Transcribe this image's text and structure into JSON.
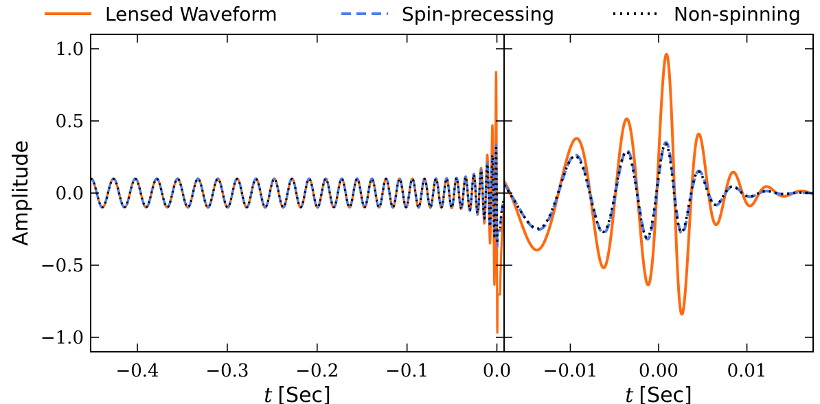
{
  "colors": {
    "lensed": "#ff6a10",
    "spin": "#4f7df0",
    "nonspin": "#000000"
  },
  "legend": [
    {
      "label": "Lensed Waveform",
      "style": "solid",
      "color_key": "lensed"
    },
    {
      "label": "Spin-precessing",
      "style": "dashed",
      "color_key": "spin"
    },
    {
      "label": "Non-spinning",
      "style": "dotted",
      "color_key": "nonspin"
    }
  ],
  "chart_data": [
    {
      "type": "line",
      "panel": "left",
      "xlabel_italic": "t",
      "xlabel_unit": "[Sec]",
      "ylabel": "Amplitude",
      "xlim": [
        -0.452,
        0.008
      ],
      "ylim": [
        -1.1,
        1.1
      ],
      "xticks": [
        -0.4,
        -0.3,
        -0.2,
        -0.1,
        0.0
      ],
      "xtick_labels": [
        "−0.4",
        "−0.3",
        "−0.2",
        "−0.1",
        "0.0"
      ],
      "yticks": [
        -1.0,
        -0.5,
        0.0,
        0.5,
        1.0
      ],
      "ytick_labels": [
        "−1.0",
        "−0.5",
        "0.0",
        "0.5",
        "1.0"
      ],
      "series": [
        {
          "name": "Lensed Waveform",
          "peak": 1.0
        },
        {
          "name": "Spin-precessing",
          "peak": 0.37
        },
        {
          "name": "Non-spinning",
          "peak": 0.36
        }
      ]
    },
    {
      "type": "line",
      "panel": "right",
      "xlabel_italic": "t",
      "xlabel_unit": "[Sec]",
      "xlim": [
        -0.0175,
        0.0175
      ],
      "ylim": [
        -1.1,
        1.1
      ],
      "xticks": [
        -0.01,
        0.0,
        0.01
      ],
      "xtick_labels": [
        "−0.01",
        "0.00",
        "0.01"
      ],
      "yticks": [
        -1.0,
        -0.5,
        0.0,
        0.5,
        1.0
      ],
      "series": [
        {
          "name": "Lensed Waveform",
          "peak": 1.0,
          "trough": -0.82
        },
        {
          "name": "Spin-precessing",
          "peak": 0.37,
          "trough": -0.38
        },
        {
          "name": "Non-spinning",
          "peak": 0.36,
          "trough": -0.36
        }
      ]
    }
  ]
}
